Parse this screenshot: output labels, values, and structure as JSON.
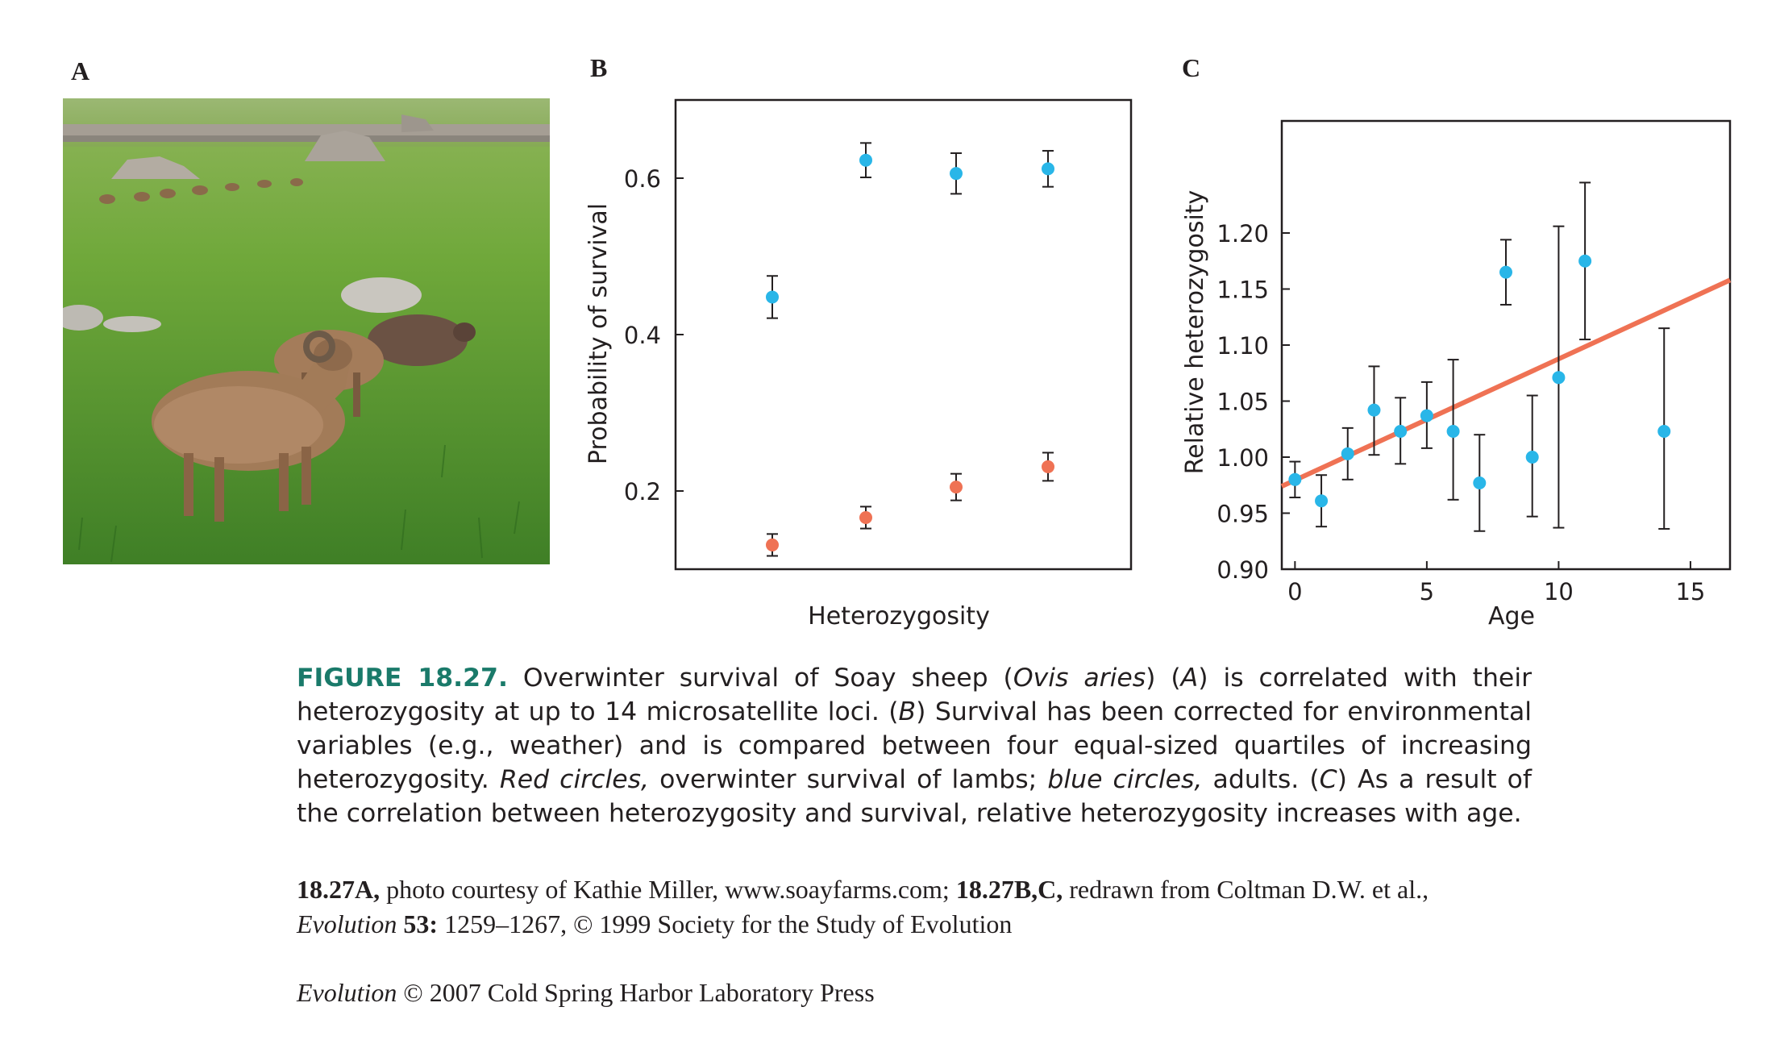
{
  "panels": {
    "a": "A",
    "b": "B",
    "c": "C"
  },
  "colors": {
    "adult": "#29b6e8",
    "lamb": "#ef7254",
    "fit_line": "#ef7254",
    "figure_label": "#1a7a6a"
  },
  "chart_data": [
    {
      "type": "scatter",
      "panel": "B",
      "xlabel": "Heterozygosity",
      "ylabel": "Probability of survival",
      "ylim": [
        0.1,
        0.7
      ],
      "yticks": [
        "0.2",
        "0.4",
        "0.6"
      ],
      "x": [
        1,
        2,
        3,
        4
      ],
      "error_bars": true,
      "series": [
        {
          "key": "adults",
          "values": [
            0.448,
            0.623,
            0.606,
            0.612
          ],
          "err": [
            0.027,
            0.022,
            0.026,
            0.023
          ],
          "color": "#29b6e8"
        },
        {
          "key": "lambs",
          "values": [
            0.131,
            0.166,
            0.205,
            0.231
          ],
          "err": [
            0.014,
            0.014,
            0.017,
            0.018
          ],
          "color": "#ef7254"
        }
      ]
    },
    {
      "type": "scatter",
      "panel": "C",
      "xlabel": "Age",
      "ylabel": "Relative heterozygosity",
      "xlim": [
        -0.5,
        16.5
      ],
      "ylim": [
        0.9,
        1.3
      ],
      "xticks": [
        "0",
        "5",
        "10",
        "15"
      ],
      "yticks": [
        "0.90",
        "0.95",
        "1.00",
        "1.05",
        "1.10",
        "1.15",
        "1.20"
      ],
      "error_bars": true,
      "series": [
        {
          "key": "points",
          "x": [
            0,
            1,
            2,
            3,
            4,
            5,
            6,
            7,
            8,
            9,
            10,
            11,
            14
          ],
          "values": [
            0.98,
            0.961,
            1.003,
            1.042,
            1.023,
            1.037,
            1.023,
            0.977,
            1.165,
            1.0,
            1.071,
            1.175,
            1.023
          ],
          "err_low": [
            0.016,
            0.023,
            0.023,
            0.04,
            0.029,
            0.029,
            0.061,
            0.043,
            0.029,
            0.053,
            0.134,
            0.07,
            0.087
          ],
          "err_high": [
            0.016,
            0.023,
            0.023,
            0.039,
            0.03,
            0.03,
            0.064,
            0.043,
            0.029,
            0.055,
            0.135,
            0.07,
            0.092
          ],
          "color": "#29b6e8"
        }
      ],
      "trend_line": {
        "x": [
          -0.5,
          16.5
        ],
        "y": [
          0.974,
          1.158
        ],
        "color": "#ef7254"
      }
    }
  ],
  "caption": {
    "label": "FIGURE 18.27.",
    "t1": " Overwinter survival of Soay sheep (",
    "t2": "Ovis aries",
    "t3": ") (",
    "t4": "A",
    "t5": ") is correlated with their heterozygosity at up to 14 microsatellite loci. (",
    "t6": "B",
    "t7": ") Survival has been corrected for environmental variables (e.g., weather) and is compared between four equal-sized quartiles of increasing heterozygosity. ",
    "t8": "Red circles,",
    "t9": " overwinter survival of lambs; ",
    "t10": "blue circles,",
    "t11": " adults. (",
    "t12": "C",
    "t13": ") As a result of the correlation between heterozygosity and survival, relative heterozygosity increases with age."
  },
  "credit": {
    "b1": "18.27A,",
    "t1": " photo courtesy of Kathie Miller, www.soayfarms.com; ",
    "b2": "18.27B,C,",
    "t2": " redrawn from Coltman D.W. et al.,",
    "i1": "Evolution",
    "b3": " 53:",
    "t3": " 1259–1267, © 1999 Society for the Study of Evolution"
  },
  "copyright": {
    "i1": "Evolution",
    "t1": " © 2007 Cold Spring Harbor Laboratory Press"
  }
}
